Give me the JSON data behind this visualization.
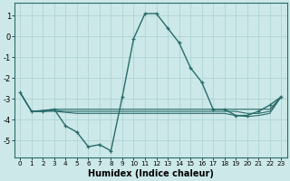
{
  "xlabel": "Humidex (Indice chaleur)",
  "background_color": "#cce8e8",
  "grid_color": "#b0d4d4",
  "line_color": "#2a6b6b",
  "xlim": [
    -0.5,
    23.5
  ],
  "ylim": [
    -5.8,
    1.6
  ],
  "yticks": [
    1,
    0,
    -1,
    -2,
    -3,
    -4,
    -5
  ],
  "xticks": [
    0,
    1,
    2,
    3,
    4,
    5,
    6,
    7,
    8,
    9,
    10,
    11,
    12,
    13,
    14,
    15,
    16,
    17,
    18,
    19,
    20,
    21,
    22,
    23
  ],
  "series": [
    {
      "x": [
        0,
        1,
        2,
        3,
        4,
        5,
        6,
        7,
        8,
        9,
        10,
        11,
        12,
        13,
        14,
        15,
        16,
        17,
        18,
        19,
        20,
        21,
        22,
        23
      ],
      "y": [
        -2.7,
        -3.6,
        -3.6,
        -3.5,
        -4.3,
        -4.6,
        -5.3,
        -5.2,
        -5.5,
        -2.9,
        -0.1,
        1.1,
        1.1,
        0.4,
        -0.3,
        -1.5,
        -2.2,
        -3.5,
        -3.5,
        -3.8,
        -3.8,
        -3.6,
        -3.3,
        -2.9
      ],
      "marker": "+",
      "lw": 1.0
    },
    {
      "x": [
        0,
        1,
        2,
        3,
        4,
        5,
        6,
        7,
        8,
        9,
        10,
        11,
        12,
        13,
        14,
        15,
        16,
        17,
        18,
        19,
        20,
        21,
        22,
        23
      ],
      "y": [
        -2.7,
        -3.6,
        -3.55,
        -3.5,
        -3.5,
        -3.5,
        -3.5,
        -3.5,
        -3.5,
        -3.5,
        -3.5,
        -3.5,
        -3.5,
        -3.5,
        -3.5,
        -3.5,
        -3.5,
        -3.5,
        -3.5,
        -3.5,
        -3.5,
        -3.5,
        -3.5,
        -2.9
      ],
      "marker": null,
      "lw": 0.8
    },
    {
      "x": [
        0,
        1,
        2,
        3,
        4,
        5,
        6,
        7,
        8,
        9,
        10,
        11,
        12,
        13,
        14,
        15,
        16,
        17,
        18,
        19,
        20,
        21,
        22,
        23
      ],
      "y": [
        -2.7,
        -3.6,
        -3.6,
        -3.55,
        -3.6,
        -3.6,
        -3.6,
        -3.6,
        -3.6,
        -3.6,
        -3.6,
        -3.6,
        -3.6,
        -3.6,
        -3.6,
        -3.6,
        -3.6,
        -3.6,
        -3.6,
        -3.6,
        -3.7,
        -3.7,
        -3.6,
        -2.9
      ],
      "marker": null,
      "lw": 0.8
    },
    {
      "x": [
        0,
        1,
        2,
        3,
        4,
        5,
        6,
        7,
        8,
        9,
        10,
        11,
        12,
        13,
        14,
        15,
        16,
        17,
        18,
        19,
        20,
        21,
        22,
        23
      ],
      "y": [
        -2.7,
        -3.6,
        -3.6,
        -3.6,
        -3.65,
        -3.7,
        -3.7,
        -3.7,
        -3.7,
        -3.7,
        -3.7,
        -3.7,
        -3.7,
        -3.7,
        -3.7,
        -3.7,
        -3.7,
        -3.7,
        -3.7,
        -3.8,
        -3.85,
        -3.8,
        -3.7,
        -2.9
      ],
      "marker": null,
      "lw": 0.8
    }
  ]
}
